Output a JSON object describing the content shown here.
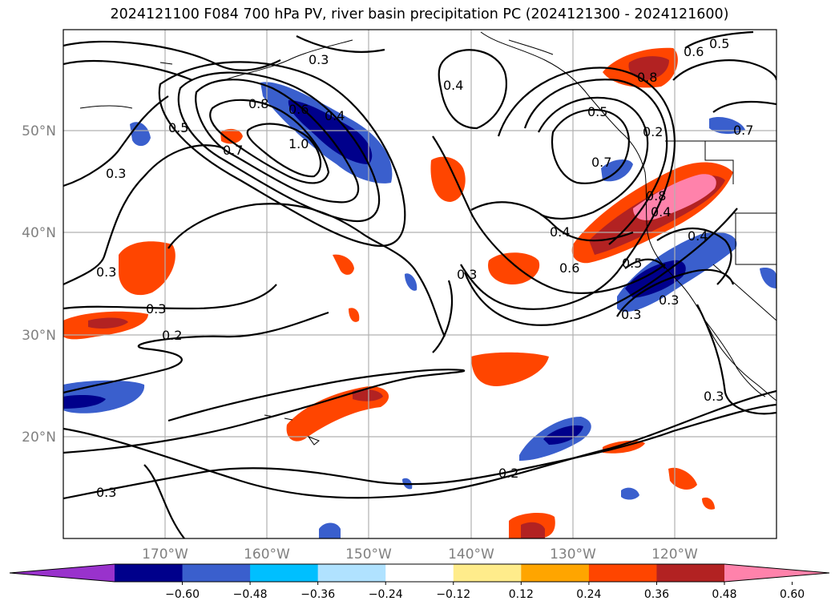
{
  "title": "2024121100 F084 700 hPa PV, river basin precipitation PC (2024121300 - 2024121600)",
  "lat_labels": [
    "50°N",
    "40°N",
    "30°N",
    "20°N"
  ],
  "lon_labels": [
    "170°W",
    "160°W",
    "150°W",
    "140°W",
    "130°W",
    "120°W"
  ],
  "contour_labels": [
    "0.3",
    "0.3",
    "0.4",
    "0.6",
    "0.5",
    "0.8",
    "0.6",
    "0.4",
    "0.5",
    "0.8",
    "0.7",
    "1.0",
    "0.3",
    "0.7",
    "0.4",
    "0.3",
    "0.2",
    "0.7",
    "0.8",
    "0.4",
    "0.5",
    "0.4",
    "0.6",
    "0.3",
    "0.3",
    "0.5",
    "0.2",
    "0.3",
    "0.3",
    "0.3",
    "0.2"
  ],
  "colorbar": {
    "ticks": [
      "−0.60",
      "−0.48",
      "−0.36",
      "−0.24",
      "−0.12",
      "0.12",
      "0.24",
      "0.36",
      "0.48",
      "0.60"
    ],
    "colors": [
      "#9932cc",
      "#00008b",
      "#3a5fcd",
      "#00bfff",
      "#b0e2ff",
      "#ffffff",
      "#ffec8b",
      "#ffa500",
      "#ff4500",
      "#b22222",
      "#ff82ab"
    ]
  },
  "colors": {
    "grid": "#b0b0b0",
    "contour": "#000000",
    "coast": "#000000"
  }
}
